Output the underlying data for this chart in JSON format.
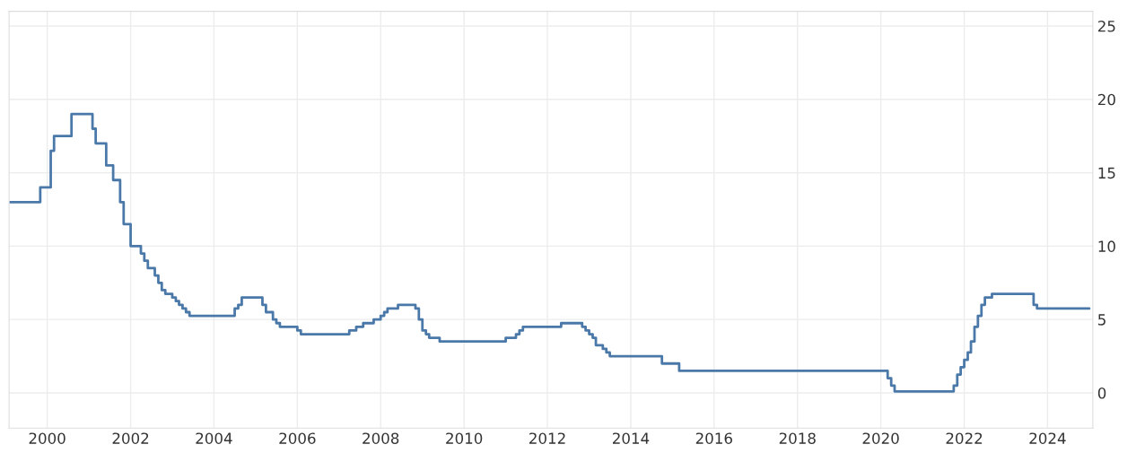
{
  "chart_data": {
    "type": "step",
    "color": "#4a78a8",
    "x": [
      "1999-02",
      "1999-11",
      "2000-02",
      "2000-03",
      "2000-08",
      "2001-02",
      "2001-03",
      "2001-06",
      "2001-08",
      "2001-10",
      "2001-11",
      "2002-01",
      "2002-04",
      "2002-05",
      "2002-06",
      "2002-08",
      "2002-09",
      "2002-10",
      "2002-11",
      "2003-01",
      "2003-02",
      "2003-03",
      "2003-04",
      "2003-05",
      "2003-06",
      "2004-07",
      "2004-08",
      "2004-09",
      "2005-03",
      "2005-04",
      "2005-06",
      "2005-07",
      "2005-08",
      "2006-01",
      "2006-02",
      "2007-04",
      "2007-06",
      "2007-08",
      "2007-11",
      "2008-01",
      "2008-02",
      "2008-03",
      "2008-06",
      "2008-11",
      "2008-12",
      "2009-01",
      "2009-02",
      "2009-03",
      "2009-06",
      "2011-01",
      "2011-04",
      "2011-05",
      "2011-06",
      "2012-05",
      "2012-11",
      "2012-12",
      "2013-01",
      "2013-02",
      "2013-03",
      "2013-05",
      "2013-06",
      "2013-07",
      "2014-10",
      "2015-03",
      "2020-03",
      "2020-04",
      "2020-05",
      "2021-10",
      "2021-11",
      "2021-12",
      "2022-01",
      "2022-02",
      "2022-03",
      "2022-04",
      "2022-05",
      "2022-06",
      "2022-07",
      "2022-09",
      "2023-09",
      "2023-10",
      "2025-01"
    ],
    "values": [
      13,
      14,
      16.5,
      17.5,
      19,
      18,
      17,
      15.5,
      14.5,
      13,
      11.5,
      10,
      9.5,
      9,
      8.5,
      8,
      7.5,
      7,
      6.75,
      6.5,
      6.25,
      6,
      5.75,
      5.5,
      5.25,
      5.75,
      6,
      6.5,
      6,
      5.5,
      5,
      4.75,
      4.5,
      4.25,
      4,
      4.25,
      4.5,
      4.75,
      5,
      5.25,
      5.5,
      5.75,
      6,
      5.75,
      5,
      4.25,
      4,
      3.75,
      3.5,
      3.75,
      4,
      4.25,
      4.5,
      4.75,
      4.5,
      4.25,
      4,
      3.75,
      3.25,
      3,
      2.75,
      2.5,
      2,
      1.5,
      1,
      0.5,
      0.1,
      0.5,
      1.25,
      1.75,
      2.25,
      2.75,
      3.5,
      4.5,
      5.25,
      6,
      6.5,
      6.75,
      6,
      5.75,
      5.75
    ],
    "xlim": [
      "1999-02",
      "2025-02"
    ],
    "xticks": [
      "2000",
      "2002",
      "2004",
      "2006",
      "2008",
      "2010",
      "2012",
      "2014",
      "2016",
      "2018",
      "2020",
      "2022",
      "2024"
    ],
    "ylim": [
      -2.4,
      26
    ],
    "yticks": [
      0,
      5,
      10,
      15,
      20,
      25
    ],
    "grid": true
  }
}
